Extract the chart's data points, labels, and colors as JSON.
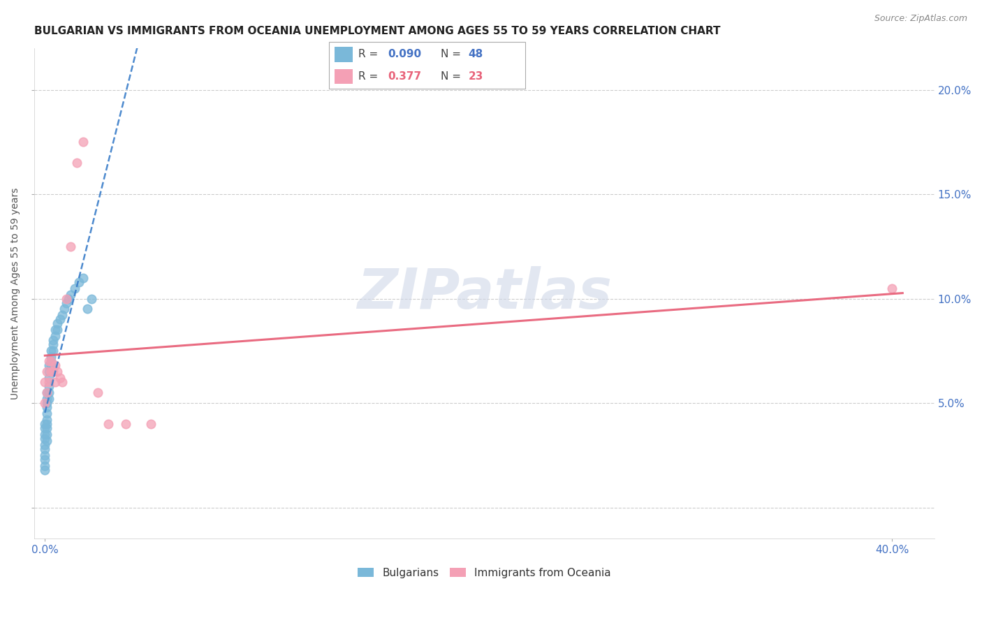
{
  "title": "BULGARIAN VS IMMIGRANTS FROM OCEANIA UNEMPLOYMENT AMONG AGES 55 TO 59 YEARS CORRELATION CHART",
  "source": "Source: ZipAtlas.com",
  "ylabel": "Unemployment Among Ages 55 to 59 years",
  "watermark": "ZIPatlas",
  "bg_color": "#ffffff",
  "plot_bg_color": "#ffffff",
  "grid_color": "#cccccc",
  "bulgarians_x": [
    0.0,
    0.0,
    0.0,
    0.0,
    0.0,
    0.0,
    0.0,
    0.0,
    0.0,
    0.0,
    0.001,
    0.001,
    0.001,
    0.001,
    0.001,
    0.001,
    0.001,
    0.001,
    0.001,
    0.001,
    0.002,
    0.002,
    0.002,
    0.002,
    0.002,
    0.002,
    0.003,
    0.003,
    0.003,
    0.003,
    0.004,
    0.004,
    0.004,
    0.005,
    0.005,
    0.006,
    0.006,
    0.007,
    0.008,
    0.009,
    0.01,
    0.011,
    0.012,
    0.014,
    0.016,
    0.018,
    0.02,
    0.022
  ],
  "bulgarians_y": [
    0.04,
    0.038,
    0.035,
    0.033,
    0.03,
    0.028,
    0.025,
    0.023,
    0.02,
    0.018,
    0.055,
    0.052,
    0.05,
    0.048,
    0.045,
    0.042,
    0.04,
    0.038,
    0.035,
    0.032,
    0.068,
    0.065,
    0.062,
    0.058,
    0.055,
    0.052,
    0.075,
    0.072,
    0.07,
    0.068,
    0.08,
    0.078,
    0.075,
    0.085,
    0.082,
    0.088,
    0.085,
    0.09,
    0.092,
    0.095,
    0.098,
    0.1,
    0.102,
    0.105,
    0.108,
    0.11,
    0.095,
    0.1
  ],
  "bulgarians_R": 0.09,
  "bulgarians_N": 48,
  "oceania_x": [
    0.0,
    0.0,
    0.001,
    0.001,
    0.002,
    0.002,
    0.003,
    0.003,
    0.004,
    0.005,
    0.005,
    0.006,
    0.007,
    0.008,
    0.01,
    0.012,
    0.015,
    0.018,
    0.025,
    0.03,
    0.038,
    0.05,
    0.4
  ],
  "oceania_y": [
    0.05,
    0.06,
    0.055,
    0.065,
    0.06,
    0.07,
    0.065,
    0.07,
    0.065,
    0.06,
    0.068,
    0.065,
    0.062,
    0.06,
    0.1,
    0.125,
    0.165,
    0.175,
    0.055,
    0.04,
    0.04,
    0.04,
    0.105
  ],
  "oceania_R": 0.377,
  "oceania_N": 23,
  "xlim": [
    -0.005,
    0.42
  ],
  "ylim": [
    -0.015,
    0.22
  ],
  "xtick_positions": [
    0.0,
    0.4
  ],
  "xtick_labels": [
    "0.0%",
    "40.0%"
  ],
  "ytick_positions": [
    0.0,
    0.05,
    0.1,
    0.15,
    0.2
  ],
  "right_ytick_labels": [
    "",
    "5.0%",
    "10.0%",
    "15.0%",
    "20.0%"
  ],
  "bulgarian_color": "#7ab8d9",
  "oceania_color": "#f4a0b5",
  "bulgarian_line_color": "#3a7dc9",
  "oceania_line_color": "#e8637a",
  "legend_bulgarian_label": "Bulgarians",
  "legend_oceania_label": "Immigrants from Oceania",
  "title_fontsize": 11,
  "source_fontsize": 9,
  "axis_label_fontsize": 10,
  "tick_fontsize": 11,
  "legend_fontsize": 11
}
